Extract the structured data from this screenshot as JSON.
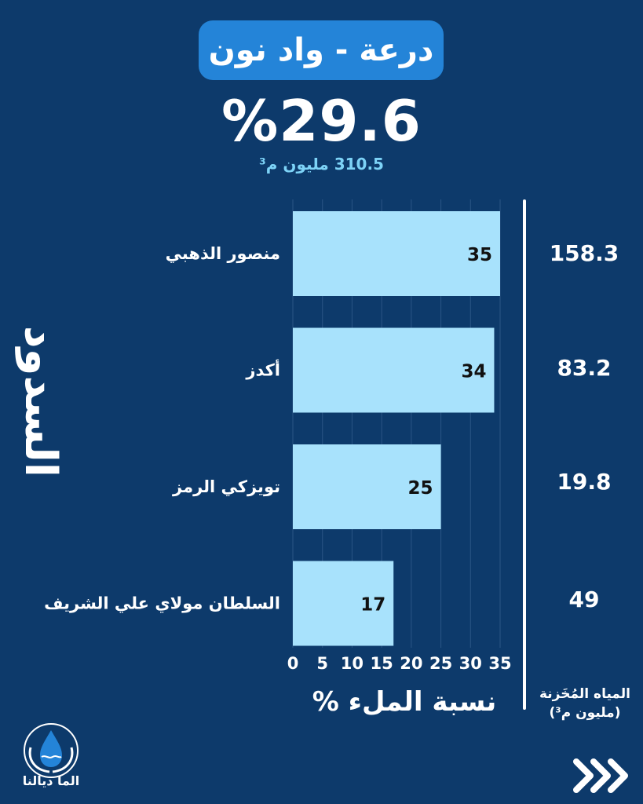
{
  "header": {
    "region": "درعة - واد نون",
    "fill_percent": "%29.6",
    "stored_total": "310.5 مليون م³"
  },
  "side_label": "السدود",
  "stored_column": {
    "title_line1": "المياه المُخَزنة",
    "title_line2": "(مليون م³)",
    "values": [
      "158.3",
      "83.2",
      "19.8",
      "49"
    ]
  },
  "chart_data": {
    "type": "bar",
    "orientation": "horizontal",
    "categories": [
      "منصور الذهبي",
      "أكدز",
      "تويزكي الرمز",
      "السلطان مولاي علي الشريف"
    ],
    "values": [
      35,
      34,
      25,
      17
    ],
    "value_labels": [
      "35",
      "34",
      "25",
      "17"
    ],
    "xlabel": "نسبة الملء %",
    "xlim": [
      0,
      35
    ],
    "xticks": [
      0,
      5,
      10,
      15,
      20,
      25,
      30,
      35
    ],
    "grid": true,
    "bar_color": "#a8e2fc"
  },
  "brand": {
    "name": "الما ديالنا",
    "logo_icon": "water-drop-hands-icon"
  },
  "nav": {
    "next_icon": "triple-chevron-right-icon"
  },
  "colors": {
    "background": "#0d3a6b",
    "accent": "#2484d8",
    "subtitle": "#7dd3f7"
  }
}
